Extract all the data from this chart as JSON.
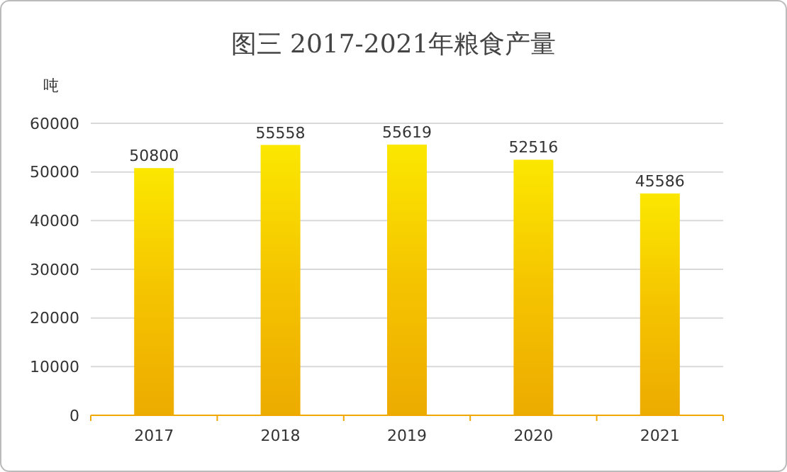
{
  "chart_data": {
    "type": "bar",
    "title": "图三  2017-2021年粮食产量",
    "ylabel": "吨",
    "categories": [
      "2017",
      "2018",
      "2019",
      "2020",
      "2021"
    ],
    "values": [
      50800,
      55558,
      55619,
      52516,
      45586
    ],
    "color": "#f5c400",
    "data_labels": true,
    "ylim": [
      0,
      60000
    ],
    "yticks": [
      0,
      10000,
      20000,
      30000,
      40000,
      50000,
      60000
    ],
    "grid": "y"
  }
}
